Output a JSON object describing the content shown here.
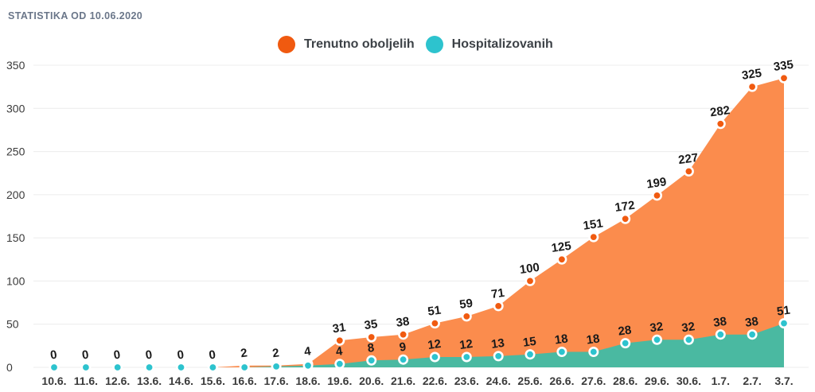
{
  "title": "STATISTIKA OD 10.06.2020",
  "colors": {
    "title_text": "#6A7689",
    "axis_text": "#3B3B3B",
    "value_label": "#1A1A1A",
    "legend_text": "#3D4247",
    "grid": "#ECECEC",
    "background": "#FFFFFF",
    "orange_dot": "#F05A10",
    "orange_area": "#FB8C4D",
    "teal_dot": "#2DC3CE",
    "teal_area": "#4AB9A1"
  },
  "chart_data": {
    "type": "area",
    "title": "STATISTIKA OD 10.06.2020",
    "x": [
      "10.6.",
      "11.6.",
      "12.6.",
      "13.6.",
      "14.6.",
      "15.6.",
      "16.6.",
      "17.6.",
      "18.6.",
      "19.6.",
      "20.6.",
      "21.6.",
      "22.6.",
      "23.6.",
      "24.6.",
      "25.6.",
      "26.6.",
      "27.6.",
      "28.6.",
      "29.6.",
      "30.6.",
      "1.7.",
      "2.7.",
      "3.7."
    ],
    "series": [
      {
        "name": "Trenutno oboljelih",
        "values": [
          0,
          0,
          0,
          0,
          0,
          0,
          2,
          2,
          4,
          31,
          35,
          38,
          51,
          59,
          71,
          100,
          125,
          151,
          172,
          199,
          227,
          282,
          325,
          335
        ],
        "labels": [
          "0",
          "0",
          "0",
          "0",
          "0",
          "0",
          "2",
          "2",
          "4",
          "31",
          "35",
          "38",
          "51",
          "59",
          "71",
          "100",
          "125",
          "151",
          "172",
          "199",
          "227",
          "282",
          "325",
          "335"
        ],
        "dot_color": "#F05A10",
        "area_color": "#FB8C4D"
      },
      {
        "name": "Hospitalizovanih",
        "values": [
          0,
          0,
          0,
          0,
          0,
          0,
          0,
          1,
          2,
          4,
          8,
          9,
          12,
          12,
          13,
          15,
          18,
          18,
          28,
          32,
          32,
          38,
          38,
          51
        ],
        "labels": [
          "",
          "",
          "",
          "",
          "",
          "",
          "",
          "",
          "",
          "4",
          "8",
          "9",
          "12",
          "12",
          "13",
          "15",
          "18",
          "18",
          "28",
          "32",
          "32",
          "38",
          "38",
          "51"
        ],
        "dot_color": "#2DC3CE",
        "area_color": "#4AB9A1"
      }
    ],
    "ylim": [
      0,
      350
    ],
    "yticks": [
      0,
      50,
      100,
      150,
      200,
      250,
      300,
      350
    ],
    "grid": true,
    "legend_position": "top-center"
  }
}
